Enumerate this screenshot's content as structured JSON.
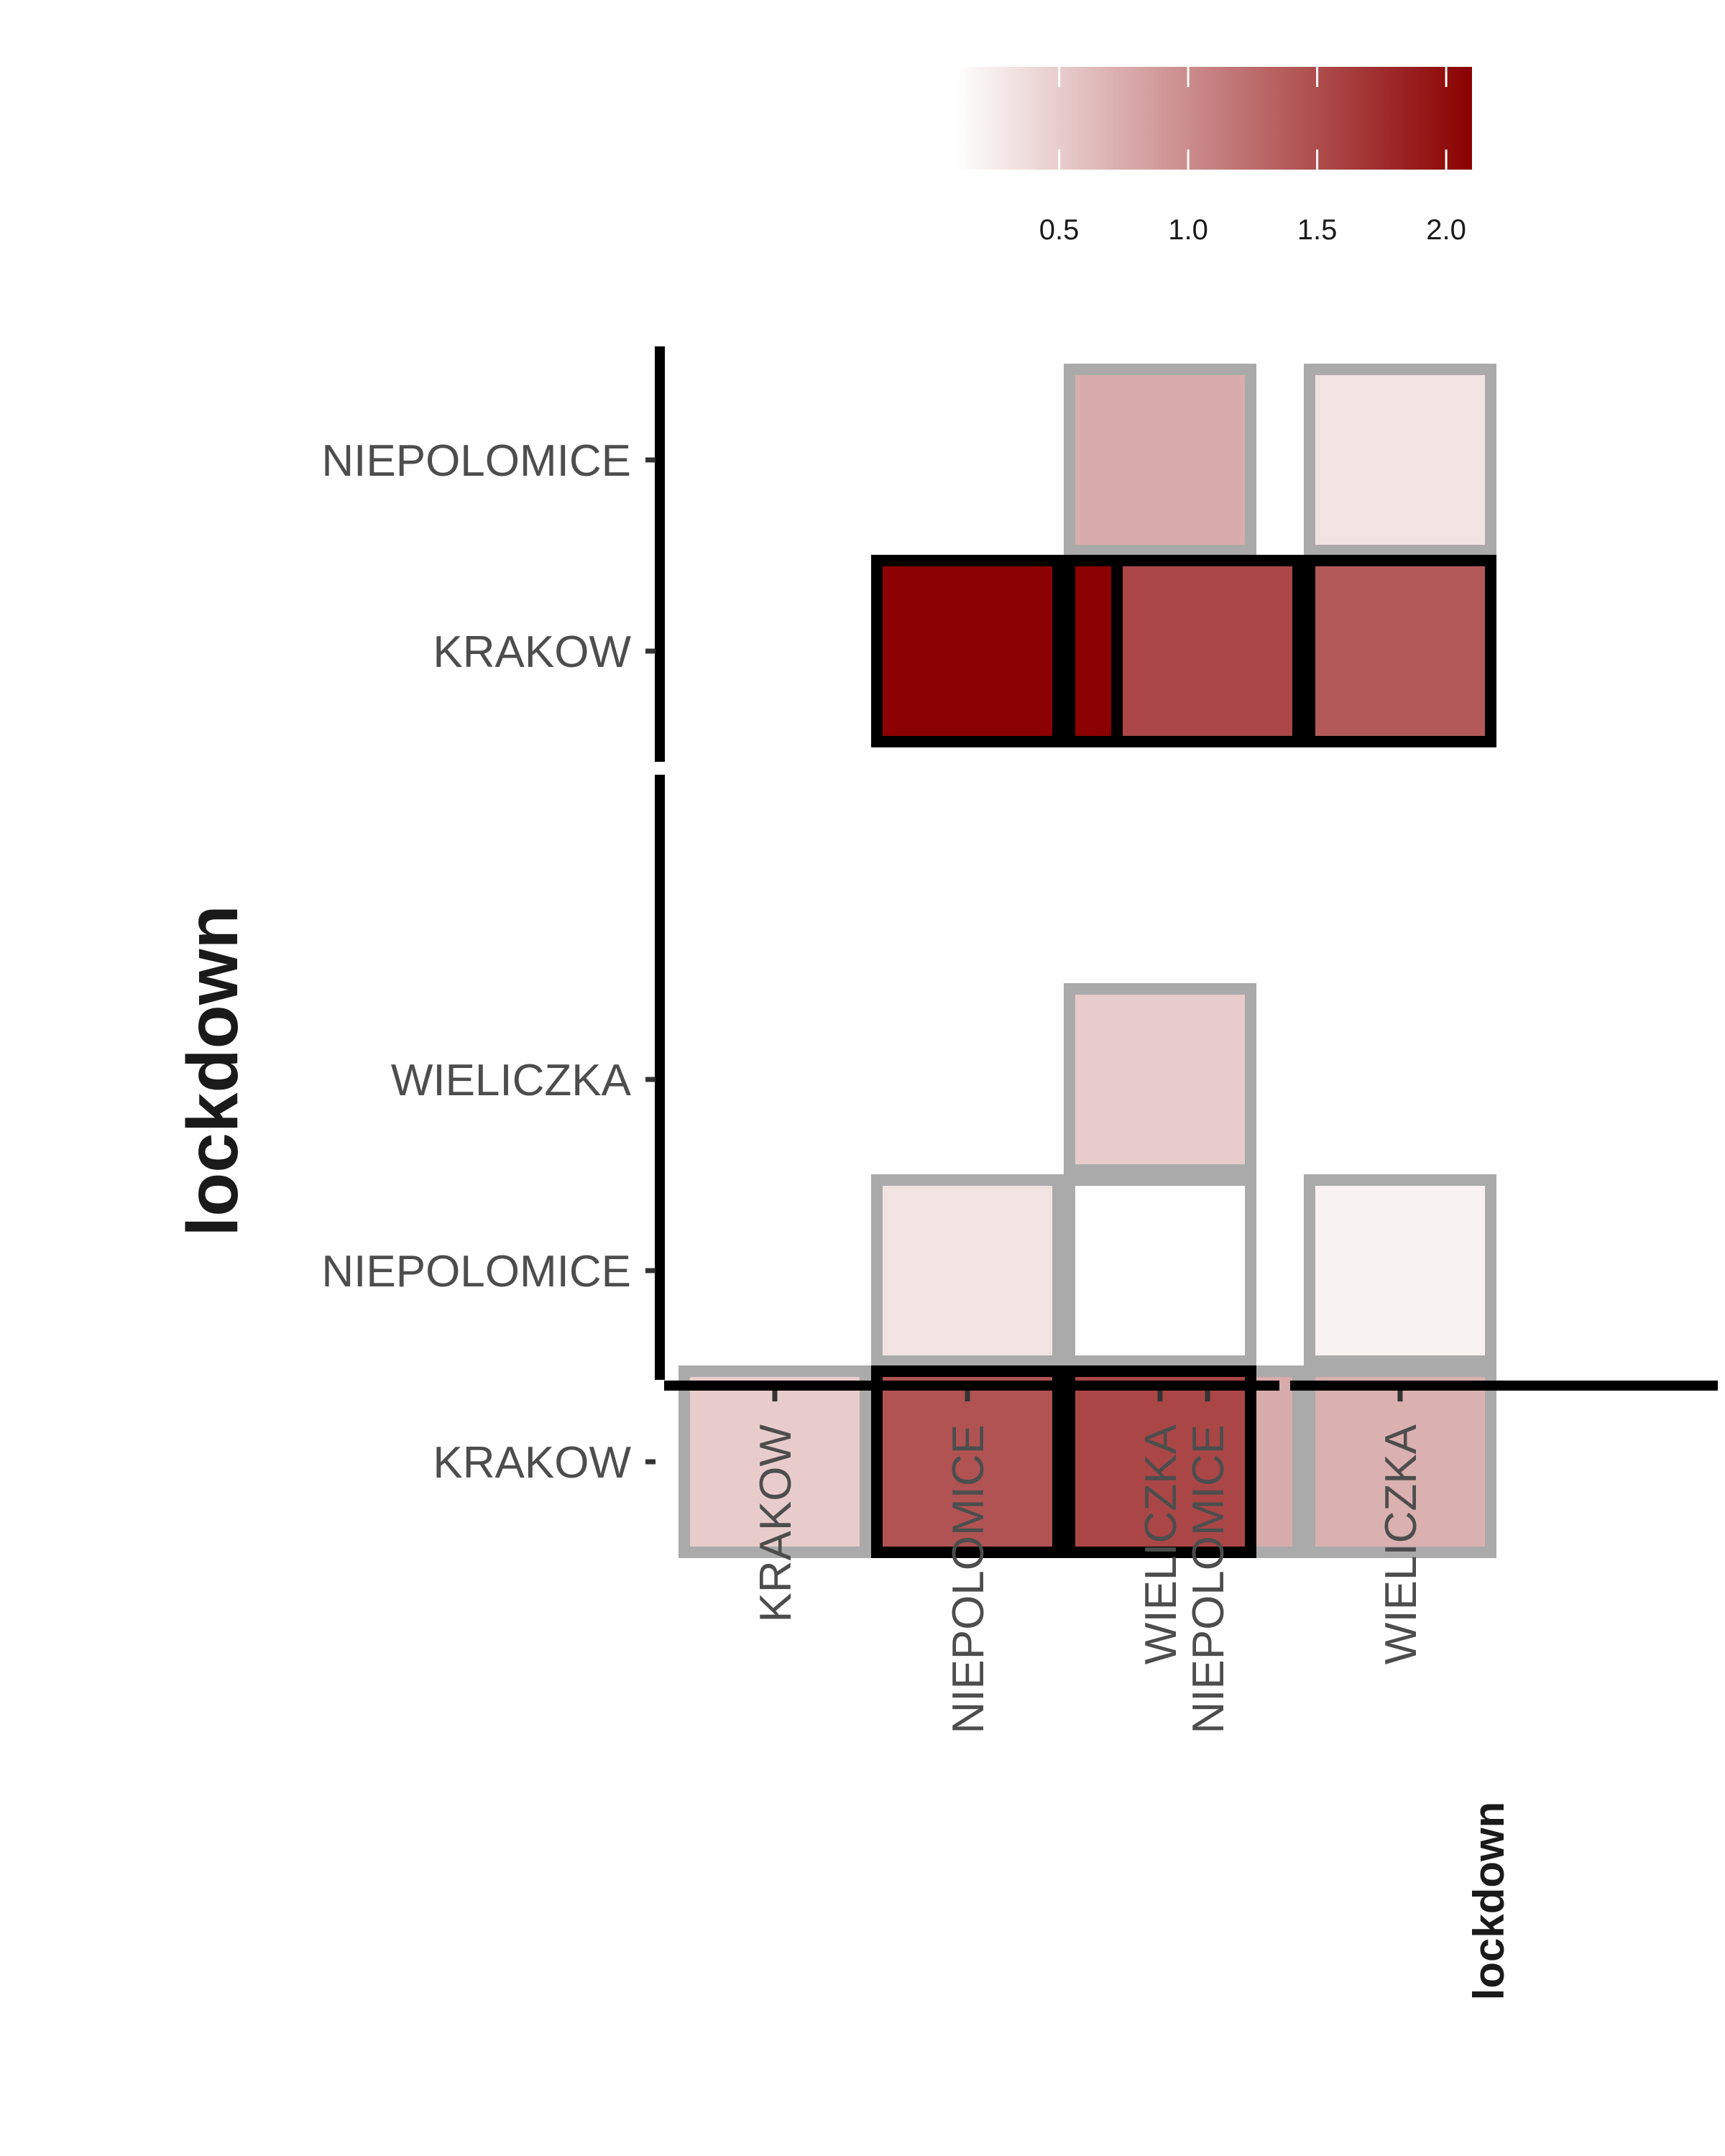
{
  "chart_data": {
    "type": "heatmap",
    "legend": {
      "title": "",
      "placement": "top",
      "ticks": [
        0.5,
        1.0,
        1.5,
        2.0
      ],
      "tick_labels": [
        "0.5",
        "1.0",
        "1.5",
        "2.0"
      ],
      "range": [
        0.1,
        2.1
      ],
      "low_color": "#ffffff",
      "high_color": "#8b0000"
    },
    "y_title": "lockdown",
    "x_title": "lockdown",
    "col_panels": [
      {
        "columns": [
          "KRAKOW",
          "NIEPOLOMICE",
          "WIELICZKA"
        ]
      },
      {
        "columns": [
          "NIEPOLOMICE",
          "WIELICZKA"
        ]
      }
    ],
    "row_panels": [
      {
        "rows": [
          "NIEPOLOMICE",
          "KRAKOW"
        ]
      },
      {
        "rows": [
          "WIELICZKA",
          "NIEPOLOMICE",
          "KRAKOW"
        ]
      }
    ],
    "cells": [
      {
        "rp": 0,
        "row": "NIEPOLOMICE",
        "cp": 0,
        "col": "WIELICZKA",
        "value": 0.75,
        "highlight": false
      },
      {
        "rp": 0,
        "row": "KRAKOW",
        "cp": 0,
        "col": "NIEPOLOMICE",
        "value": 2.1,
        "highlight": true
      },
      {
        "rp": 0,
        "row": "KRAKOW",
        "cp": 0,
        "col": "WIELICZKA",
        "value": 2.1,
        "highlight": true
      },
      {
        "rp": 0,
        "row": "NIEPOLOMICE",
        "cp": 1,
        "col": "WIELICZKA",
        "value": 0.32,
        "highlight": false
      },
      {
        "rp": 0,
        "row": "KRAKOW",
        "cp": 1,
        "col": "NIEPOLOMICE",
        "value": 1.55,
        "highlight": true
      },
      {
        "rp": 0,
        "row": "KRAKOW",
        "cp": 1,
        "col": "WIELICZKA",
        "value": 1.4,
        "highlight": true
      },
      {
        "rp": 1,
        "row": "WIELICZKA",
        "cp": 0,
        "col": "WIELICZKA",
        "value": 0.5,
        "highlight": false
      },
      {
        "rp": 1,
        "row": "NIEPOLOMICE",
        "cp": 0,
        "col": "NIEPOLOMICE",
        "value": 0.32,
        "highlight": false
      },
      {
        "rp": 1,
        "row": "NIEPOLOMICE",
        "cp": 0,
        "col": "WIELICZKA",
        "value": 0.1,
        "highlight": false
      },
      {
        "rp": 1,
        "row": "KRAKOW",
        "cp": 0,
        "col": "KRAKOW",
        "value": 0.5,
        "highlight": false
      },
      {
        "rp": 1,
        "row": "KRAKOW",
        "cp": 0,
        "col": "NIEPOLOMICE",
        "value": 1.45,
        "highlight": true
      },
      {
        "rp": 1,
        "row": "KRAKOW",
        "cp": 0,
        "col": "WIELICZKA",
        "value": 1.55,
        "highlight": true
      },
      {
        "rp": 1,
        "row": "NIEPOLOMICE",
        "cp": 1,
        "col": "WIELICZKA",
        "value": 0.2,
        "highlight": false
      },
      {
        "rp": 1,
        "row": "KRAKOW",
        "cp": 1,
        "col": "NIEPOLOMICE",
        "value": 0.75,
        "highlight": false
      },
      {
        "rp": 1,
        "row": "KRAKOW",
        "cp": 1,
        "col": "WIELICZKA",
        "value": 0.72,
        "highlight": false
      }
    ],
    "border_colors": {
      "highlight": "#000000",
      "normal": "#aaaaaa"
    }
  }
}
